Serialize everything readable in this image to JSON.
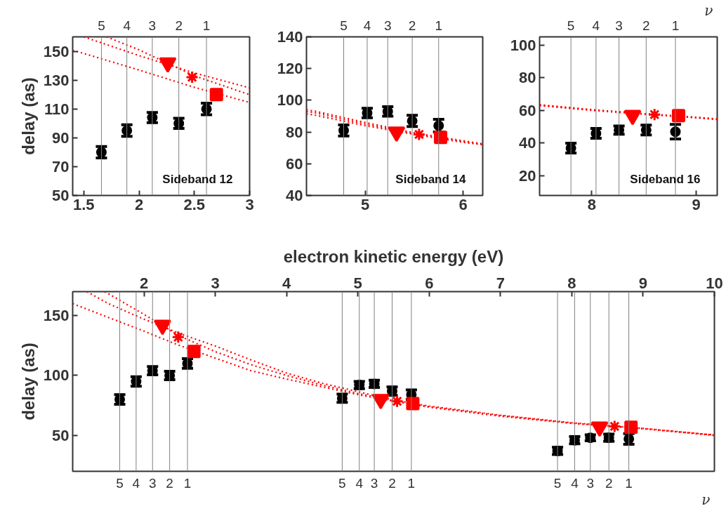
{
  "chart_data": [
    {
      "type": "scatter",
      "title": "Sideband 12",
      "ylabel": "delay (as)",
      "xlim": [
        1.4,
        3
      ],
      "xticks": [
        1.5,
        2,
        2.5,
        3
      ],
      "ylim": [
        50,
        160
      ],
      "yticks": [
        50,
        70,
        90,
        110,
        130,
        150
      ],
      "annotations": [
        {
          "text": "5",
          "x": 1.66,
          "y": 160
        },
        {
          "text": "4",
          "x": 1.89,
          "y": 160
        },
        {
          "text": "3",
          "x": 2.12,
          "y": 160
        },
        {
          "text": "2",
          "x": 2.36,
          "y": 160
        },
        {
          "text": "1",
          "x": 2.61,
          "y": 160
        }
      ],
      "series": [
        {
          "type": "line",
          "color": "#ff0000",
          "line_style": "dotted",
          "x": [
            1.5,
            2,
            2.5,
            3
          ],
          "values": [
            160,
            147,
            135,
            124.6
          ]
        },
        {
          "type": "line",
          "color": "#ff0000",
          "line_style": "dotted",
          "x": [
            1.707,
            2,
            2.5,
            3
          ],
          "values": [
            160,
            151,
            133,
            119.9
          ]
        },
        {
          "type": "line",
          "color": "#ff0000",
          "line_style": "dotted",
          "x": [
            1.4,
            1.5,
            2,
            2.5,
            3
          ],
          "values": [
            150.6,
            148.5,
            137,
            125,
            114.5
          ]
        },
        {
          "color": "#000000",
          "marker": "circle",
          "x": [
            1.66,
            1.89,
            2.12,
            2.36,
            2.61
          ],
          "values": [
            80,
            95,
            104,
            100,
            110
          ],
          "errors": [
            4,
            4,
            3.5,
            3.5,
            4
          ]
        },
        {
          "color": "#ff0000",
          "marker": "triangle",
          "x": [
            2.26
          ],
          "values": [
            142
          ]
        },
        {
          "color": "#ff0000",
          "marker": "cross",
          "x": [
            2.48
          ],
          "values": [
            132
          ]
        },
        {
          "color": "#ff0000",
          "marker": "square",
          "x": [
            2.7
          ],
          "values": [
            120
          ]
        }
      ],
      "ref_lines": [
        {
          "axis": "x",
          "value": 1.66,
          "color": "#808080"
        },
        {
          "axis": "x",
          "value": 1.89,
          "color": "#808080"
        },
        {
          "axis": "x",
          "value": 2.12,
          "color": "#808080"
        },
        {
          "axis": "x",
          "value": 2.36,
          "color": "#808080"
        },
        {
          "axis": "x",
          "value": 2.61,
          "color": "#808080"
        }
      ]
    },
    {
      "type": "scatter",
      "title": "Sideband 14",
      "xlim": [
        4.4,
        6.2
      ],
      "xticks": [
        5,
        6
      ],
      "ylim": [
        40,
        140
      ],
      "yticks": [
        40,
        60,
        80,
        100,
        120,
        140
      ],
      "annotations": [
        {
          "text": "5",
          "x": 4.78,
          "y": 140
        },
        {
          "text": "4",
          "x": 5.02,
          "y": 140
        },
        {
          "text": "3",
          "x": 5.23,
          "y": 140
        },
        {
          "text": "2",
          "x": 5.48,
          "y": 140
        },
        {
          "text": "1",
          "x": 5.75,
          "y": 140
        }
      ],
      "series": [
        {
          "type": "line",
          "color": "#ff0000",
          "line_style": "dotted",
          "x": [
            4.4,
            4.5,
            5,
            5.5,
            6,
            6.2
          ],
          "values": [
            94,
            93,
            86,
            79.5,
            74.5,
            72.5
          ]
        },
        {
          "type": "line",
          "color": "#ff0000",
          "line_style": "dotted",
          "x": [
            4.4,
            4.5,
            5,
            5.5,
            6,
            6.2
          ],
          "values": [
            93,
            92,
            85,
            79,
            74,
            72.3
          ]
        },
        {
          "type": "line",
          "color": "#ff0000",
          "line_style": "dotted",
          "x": [
            4.4,
            4.5,
            5,
            5.5,
            6,
            6.2
          ],
          "values": [
            91.5,
            90.5,
            84,
            78.5,
            73.5,
            72
          ]
        },
        {
          "color": "#000000",
          "marker": "circle",
          "x": [
            4.78,
            5.02,
            5.23,
            5.48,
            5.75
          ],
          "values": [
            81,
            92,
            93,
            87,
            84
          ],
          "errors": [
            3.5,
            3,
            3,
            3.5,
            4
          ]
        },
        {
          "color": "#ff0000",
          "marker": "triangle",
          "x": [
            5.32
          ],
          "values": [
            80
          ]
        },
        {
          "color": "#ff0000",
          "marker": "cross",
          "x": [
            5.55
          ],
          "values": [
            78.5
          ]
        },
        {
          "color": "#ff0000",
          "marker": "square",
          "x": [
            5.77
          ],
          "values": [
            76.6
          ]
        }
      ],
      "ref_lines": [
        {
          "axis": "x",
          "value": 4.78,
          "color": "#808080"
        },
        {
          "axis": "x",
          "value": 5.02,
          "color": "#808080"
        },
        {
          "axis": "x",
          "value": 5.23,
          "color": "#808080"
        },
        {
          "axis": "x",
          "value": 5.48,
          "color": "#808080"
        },
        {
          "axis": "x",
          "value": 5.75,
          "color": "#808080"
        }
      ]
    },
    {
      "type": "scatter",
      "title": "Sideband 16",
      "xlim": [
        7.5,
        9.2
      ],
      "xticks": [
        8,
        9
      ],
      "ylim": [
        8,
        105
      ],
      "yticks": [
        20,
        40,
        60,
        80,
        100
      ],
      "annotations": [
        {
          "text": "5",
          "x": 7.8,
          "y": 105
        },
        {
          "text": "4",
          "x": 8.04,
          "y": 105
        },
        {
          "text": "3",
          "x": 8.26,
          "y": 105
        },
        {
          "text": "2",
          "x": 8.52,
          "y": 105
        },
        {
          "text": "1",
          "x": 8.8,
          "y": 105
        },
        "ν"
      ],
      "series": [
        {
          "type": "line",
          "color": "#ff0000",
          "line_style": "dotted",
          "x": [
            7.5,
            8,
            8.5,
            9,
            9.2
          ],
          "values": [
            63.5,
            60.5,
            58,
            55.8,
            54.8
          ]
        },
        {
          "type": "line",
          "color": "#ff0000",
          "line_style": "dotted",
          "x": [
            7.5,
            8,
            8.5,
            9,
            9.2
          ],
          "values": [
            63.2,
            60.3,
            57.9,
            55.7,
            54.6
          ]
        },
        {
          "type": "line",
          "color": "#ff0000",
          "line_style": "dotted",
          "x": [
            7.5,
            8,
            8.5,
            9,
            9.2
          ],
          "values": [
            63,
            60,
            57.7,
            55.5,
            54.4
          ]
        },
        {
          "color": "#000000",
          "marker": "circle",
          "x": [
            7.8,
            8.04,
            8.26,
            8.52,
            8.8
          ],
          "values": [
            37,
            46,
            48,
            48,
            47
          ],
          "errors": [
            3,
            3,
            2.5,
            3,
            4.5
          ]
        },
        {
          "color": "#ff0000",
          "marker": "triangle",
          "x": [
            8.39
          ],
          "values": [
            57
          ]
        },
        {
          "color": "#ff0000",
          "marker": "cross",
          "x": [
            8.6
          ],
          "values": [
            57.5
          ]
        },
        {
          "color": "#ff0000",
          "marker": "square",
          "x": [
            8.83
          ],
          "values": [
            56.8
          ]
        }
      ],
      "ref_lines": [
        {
          "axis": "x",
          "value": 7.8,
          "color": "#808080"
        },
        {
          "axis": "x",
          "value": 8.04,
          "color": "#808080"
        },
        {
          "axis": "x",
          "value": 8.26,
          "color": "#808080"
        },
        {
          "axis": "x",
          "value": 8.52,
          "color": "#808080"
        },
        {
          "axis": "x",
          "value": 8.8,
          "color": "#808080"
        }
      ]
    },
    {
      "type": "scatter",
      "ylabel": "delay (as)",
      "xlabel": "electron kinetic energy (eV)",
      "xlim": [
        1,
        10
      ],
      "xticks": [
        2,
        3,
        4,
        5,
        6,
        7,
        8,
        9,
        10
      ],
      "ylim": [
        20,
        170
      ],
      "yticks": [
        50,
        100,
        150
      ],
      "annotations": [
        {
          "text": "5",
          "x": 1.66,
          "y": 20
        },
        {
          "text": "4",
          "x": 1.89,
          "y": 20
        },
        {
          "text": "3",
          "x": 2.12,
          "y": 20
        },
        {
          "text": "2",
          "x": 2.36,
          "y": 20
        },
        {
          "text": "1",
          "x": 2.61,
          "y": 20
        },
        {
          "text": "5",
          "x": 4.78,
          "y": 20
        },
        {
          "text": "4",
          "x": 5.02,
          "y": 20
        },
        {
          "text": "3",
          "x": 5.23,
          "y": 20
        },
        {
          "text": "2",
          "x": 5.48,
          "y": 20
        },
        {
          "text": "1",
          "x": 5.75,
          "y": 20
        },
        {
          "text": "5",
          "x": 7.8,
          "y": 20
        },
        {
          "text": "4",
          "x": 8.04,
          "y": 20
        },
        {
          "text": "3",
          "x": 8.26,
          "y": 20
        },
        {
          "text": "2",
          "x": 8.52,
          "y": 20
        },
        {
          "text": "1",
          "x": 8.8,
          "y": 20
        },
        "ν"
      ],
      "series": [
        {
          "type": "line",
          "color": "#ff0000",
          "line_style": "dotted",
          "x": [
            1.2,
            1.5,
            2,
            2.5,
            3,
            3.5,
            4,
            4.5,
            5,
            5.5,
            6,
            7,
            8,
            9,
            10
          ],
          "values": [
            170,
            160,
            147,
            135,
            124.6,
            113,
            102,
            93.5,
            86.5,
            79.5,
            74.5,
            66.8,
            60.5,
            55.8,
            50.3
          ]
        },
        {
          "type": "line",
          "color": "#ff0000",
          "line_style": "dotted",
          "x": [
            1.45,
            2,
            2.5,
            3,
            3.5,
            4,
            4.5,
            5,
            5.5,
            6,
            7,
            8,
            9,
            10
          ],
          "values": [
            170,
            151,
            133,
            119.9,
            109,
            100,
            92,
            85,
            79,
            74,
            66.5,
            60.3,
            55.7,
            50.2
          ]
        },
        {
          "type": "line",
          "color": "#ff0000",
          "line_style": "dotted",
          "x": [
            1,
            1.5,
            2,
            2.5,
            3,
            3.5,
            4,
            4.5,
            5,
            5.5,
            6,
            7,
            8,
            9,
            10
          ],
          "values": [
            160,
            148.5,
            137,
            125,
            114.5,
            104,
            97,
            90.5,
            84,
            78.5,
            73.5,
            66,
            60,
            55.5,
            50
          ]
        },
        {
          "color": "#000000",
          "marker": "circle",
          "x": [
            1.66,
            1.89,
            2.12,
            2.36,
            2.61,
            4.78,
            5.02,
            5.23,
            5.48,
            5.75,
            7.8,
            8.04,
            8.26,
            8.52,
            8.8
          ],
          "values": [
            80,
            95,
            104,
            100,
            110,
            81,
            92,
            93,
            87,
            84,
            37,
            46,
            48,
            48,
            47
          ],
          "errors": [
            4,
            4,
            3.5,
            3.5,
            4,
            3.5,
            3,
            3,
            3.5,
            4,
            3,
            3,
            2.5,
            3,
            4.5
          ]
        },
        {
          "color": "#ff0000",
          "marker": "triangle",
          "x": [
            2.26,
            5.32,
            8.39
          ],
          "values": [
            142,
            80,
            57
          ]
        },
        {
          "color": "#ff0000",
          "marker": "cross",
          "x": [
            2.48,
            5.55,
            8.6
          ],
          "values": [
            132,
            78.5,
            57.5
          ]
        },
        {
          "color": "#ff0000",
          "marker": "square",
          "x": [
            2.7,
            5.77,
            8.83
          ],
          "values": [
            120,
            76.6,
            56.8
          ]
        }
      ],
      "ref_lines": [
        {
          "axis": "x",
          "value": 1.66,
          "color": "#808080"
        },
        {
          "axis": "x",
          "value": 1.89,
          "color": "#808080"
        },
        {
          "axis": "x",
          "value": 2.12,
          "color": "#808080"
        },
        {
          "axis": "x",
          "value": 2.36,
          "color": "#808080"
        },
        {
          "axis": "x",
          "value": 2.61,
          "color": "#808080"
        },
        {
          "axis": "x",
          "value": 4.78,
          "color": "#808080"
        },
        {
          "axis": "x",
          "value": 5.02,
          "color": "#808080"
        },
        {
          "axis": "x",
          "value": 5.23,
          "color": "#808080"
        },
        {
          "axis": "x",
          "value": 5.48,
          "color": "#808080"
        },
        {
          "axis": "x",
          "value": 5.75,
          "color": "#808080"
        },
        {
          "axis": "x",
          "value": 7.8,
          "color": "#808080"
        },
        {
          "axis": "x",
          "value": 8.04,
          "color": "#808080"
        },
        {
          "axis": "x",
          "value": 8.26,
          "color": "#808080"
        },
        {
          "axis": "x",
          "value": 8.52,
          "color": "#808080"
        },
        {
          "axis": "x",
          "value": 8.8,
          "color": "#808080"
        }
      ]
    }
  ]
}
